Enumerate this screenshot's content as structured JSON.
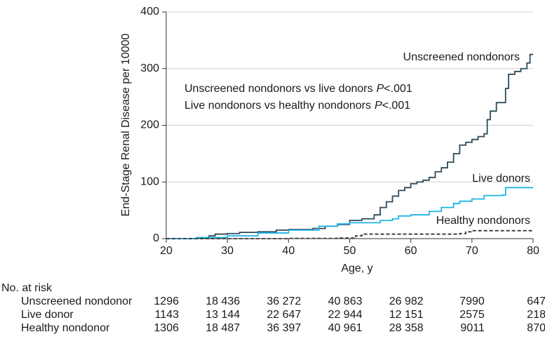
{
  "chart_data": {
    "type": "line",
    "step": "post",
    "ylabel": "End-Stage Renal Disease per 10000",
    "xlabel": "Age, y",
    "xlim": [
      20,
      80
    ],
    "xticks": [
      20,
      30,
      40,
      50,
      60,
      70,
      80
    ],
    "ylim": [
      0,
      400
    ],
    "yticks": [
      0,
      100,
      200,
      300,
      400
    ],
    "grid": true,
    "series": [
      {
        "name": "Unscreened nondonors",
        "color": "#2c4a5a",
        "dash": false,
        "x": [
          20,
          25,
          27,
          28,
          30,
          32,
          35,
          38,
          40,
          42,
          44,
          46,
          48,
          50,
          52,
          54,
          55,
          56,
          57,
          58,
          59,
          60,
          61,
          62,
          63,
          64,
          65,
          66,
          67,
          68,
          69,
          70,
          71,
          72,
          72.5,
          73,
          74,
          75,
          75.5,
          76,
          77,
          78,
          79,
          79.5,
          80
        ],
        "values": [
          0,
          1,
          5,
          8,
          9,
          11,
          12,
          15,
          16,
          16,
          18,
          22,
          25,
          32,
          35,
          42,
          55,
          65,
          75,
          85,
          90,
          97,
          100,
          103,
          108,
          118,
          125,
          135,
          150,
          165,
          170,
          175,
          180,
          185,
          210,
          225,
          240,
          240,
          265,
          290,
          295,
          300,
          310,
          325,
          325
        ]
      },
      {
        "name": "Live donors",
        "color": "#1fb4e6",
        "dash": false,
        "x": [
          20,
          25,
          30,
          35,
          40,
          45,
          48,
          50,
          55,
          57,
          58,
          60,
          63,
          65,
          67,
          68,
          70,
          72,
          75,
          75.5,
          80
        ],
        "values": [
          0,
          2,
          5,
          10,
          15,
          22,
          26,
          28,
          32,
          35,
          40,
          42,
          48,
          55,
          62,
          66,
          70,
          76,
          77,
          90,
          90
        ]
      },
      {
        "name": "Healthy nondonors",
        "color": "#333333",
        "dash": true,
        "x": [
          20,
          30,
          40,
          48,
          51,
          52,
          60,
          68,
          69,
          70,
          80
        ],
        "values": [
          0,
          0,
          0.5,
          1,
          5,
          8,
          8,
          9,
          12,
          14,
          14
        ]
      }
    ],
    "annotations": [
      [
        "Unscreened nondonors vs live donors",
        "P",
        "<.001"
      ],
      [
        "Live nondonors vs healthy nondonors",
        "P",
        "<.001"
      ]
    ],
    "risk_table": {
      "title": "No. at risk",
      "rows": [
        {
          "label": "Unscreened nondonor",
          "values": [
            "1296",
            "18 436",
            "36 272",
            "40 863",
            "26 982",
            "7990",
            "647"
          ]
        },
        {
          "label": "Live donor",
          "values": [
            "1143",
            "13 144",
            "22 647",
            "22 944",
            "12 151",
            "2575",
            "218"
          ]
        },
        {
          "label": "Healthy nondonor",
          "values": [
            "1306",
            "18 487",
            "36 397",
            "40 961",
            "28 358",
            "9011",
            "870"
          ]
        }
      ]
    }
  }
}
